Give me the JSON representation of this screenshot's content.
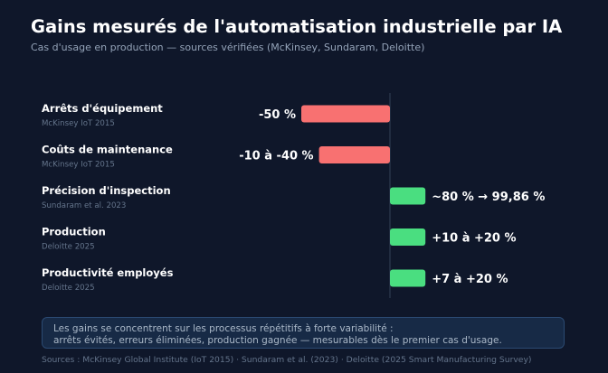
{
  "header": {
    "title": "Gains mesurés de l'automatisation industrielle par IA",
    "subtitle": "Cas d'usage en production — sources vérifiées (McKinsey, Sundaram, Deloitte)"
  },
  "chart_data": {
    "type": "bar",
    "orientation": "horizontal",
    "baseline": 0,
    "xlim": [
      -50,
      50
    ],
    "grid": false,
    "categories": [
      "Arrêts d'équipement",
      "Coûts de maintenance",
      "Précision d'inspection",
      "Production",
      "Productivité employés"
    ],
    "sources": [
      "McKinsey IoT 2015",
      "McKinsey IoT 2015",
      "Sundaram et al. 2023",
      "Deloitte 2025",
      "Deloitte 2025"
    ],
    "values": [
      -50,
      -40,
      20,
      20,
      20
    ],
    "value_labels": [
      "-50 %",
      "-10 à -40 %",
      "~80 % → 99,86 %",
      "+10 à +20 %",
      "+7 à +20 %"
    ],
    "colors": {
      "negative": "#f87171",
      "positive": "#4ade80",
      "axis": "#334155"
    }
  },
  "note": {
    "line1": "Les gains se concentrent sur les processus répétitifs à forte variabilité :",
    "line2": "arrêts évités, erreurs éliminées, production gagnée — mesurables dès le premier cas d'usage."
  },
  "footer": {
    "sources": "Sources : McKinsey Global Institute (IoT 2015) · Sundaram et al. (2023) · Deloitte (2025 Smart Manufacturing Survey)"
  }
}
